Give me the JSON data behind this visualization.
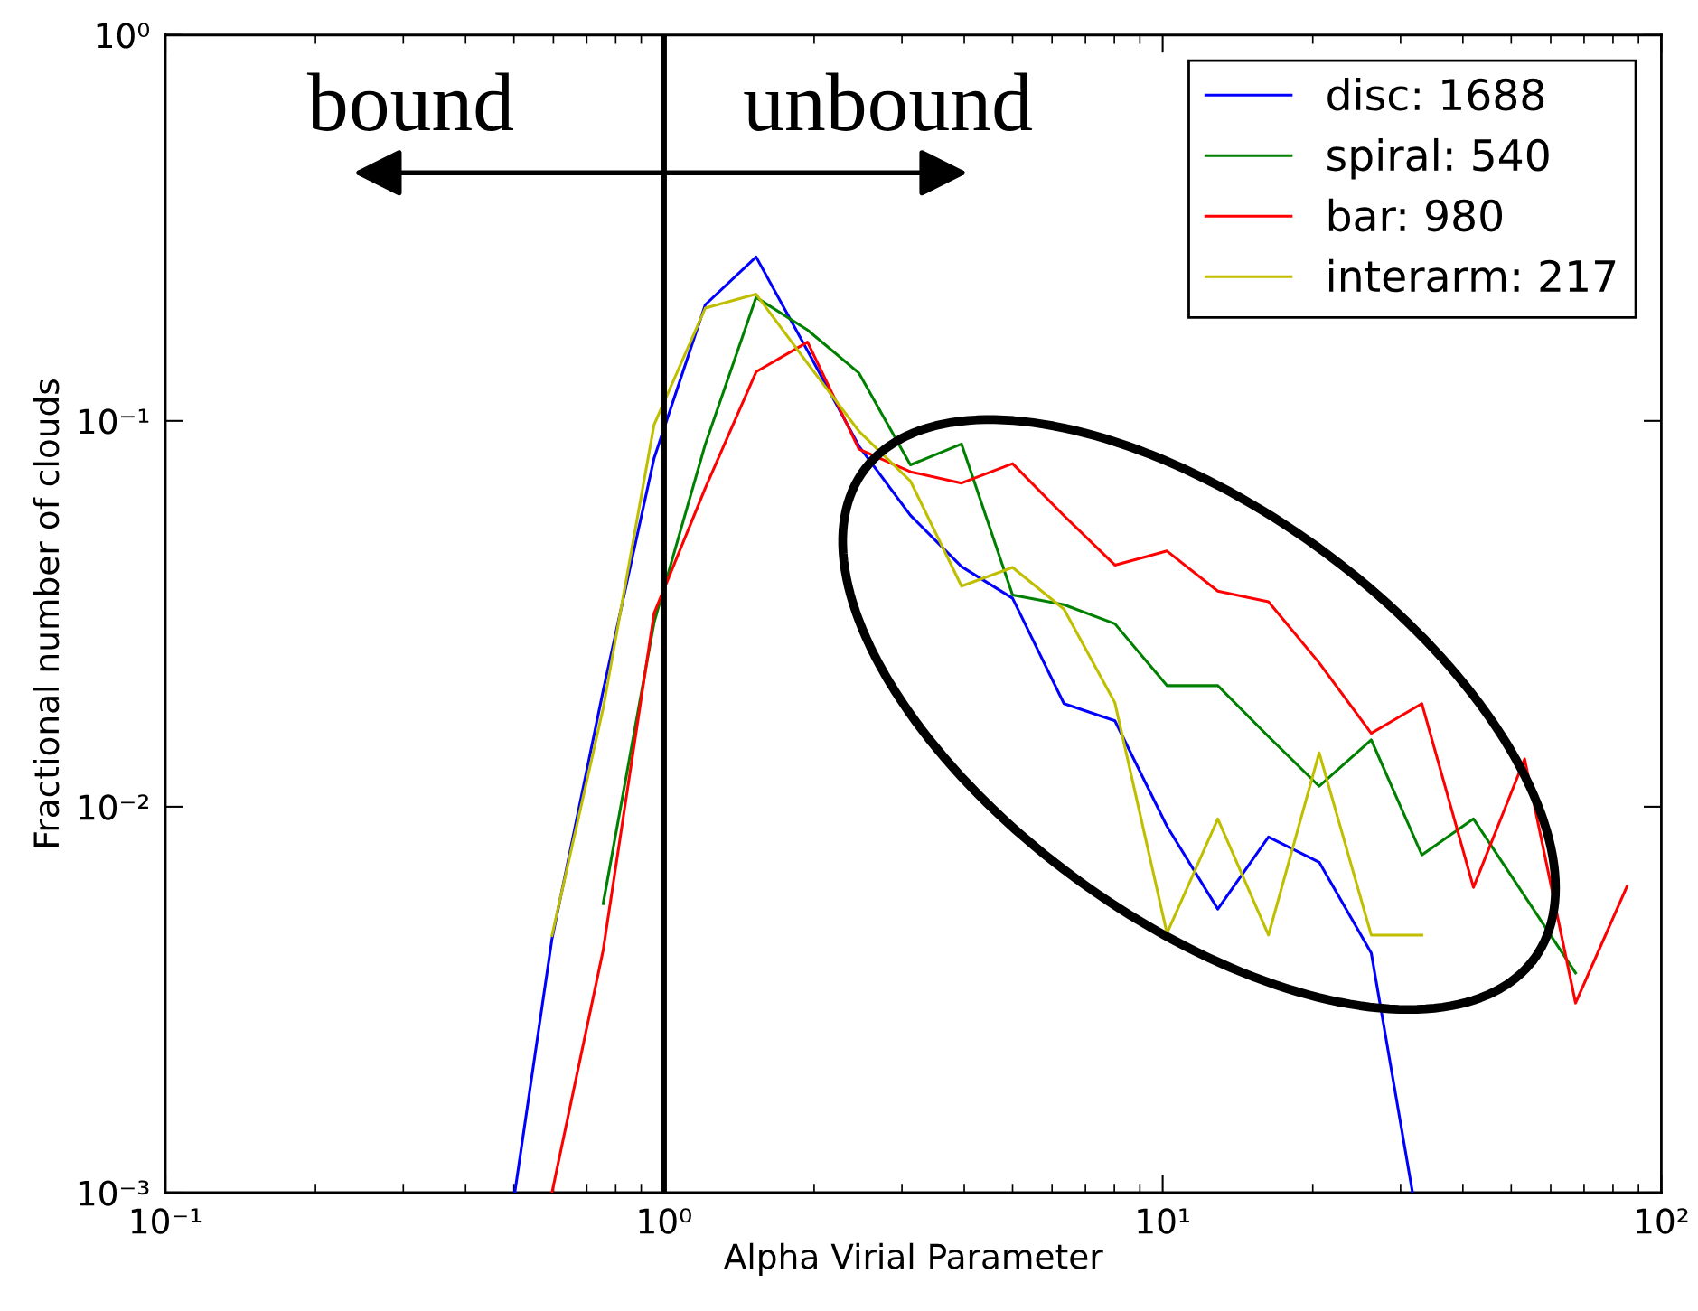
{
  "chart_data": {
    "type": "line",
    "xlabel": "Alpha Virial Parameter",
    "ylabel": "Fractional number of clouds",
    "log": "xy",
    "xlim": [
      0.1,
      100
    ],
    "ylim": [
      0.001,
      1
    ],
    "xticks": [
      {
        "value": 0.1,
        "label": "10⁻¹"
      },
      {
        "value": 1,
        "label": "10⁰"
      },
      {
        "value": 10,
        "label": "10¹"
      },
      {
        "value": 100,
        "label": "10²"
      }
    ],
    "yticks": [
      {
        "value": 0.001,
        "label": "10⁻³"
      },
      {
        "value": 0.01,
        "label": "10⁻²"
      },
      {
        "value": 0.1,
        "label": "10⁻¹"
      },
      {
        "value": 1,
        "label": "10⁰"
      }
    ],
    "grid": false,
    "legend": "top right",
    "marker": "none",
    "line_style": "solid",
    "series": [
      {
        "name": "disc: 1688",
        "color": "#0000ff",
        "x": [
          0.502,
          0.596,
          0.755,
          0.955,
          1.21,
          1.53,
          1.94,
          2.46,
          3.12,
          3.95,
          5.0,
          6.34,
          8.02,
          10.2,
          12.9,
          16.3,
          20.6,
          26.2,
          31.7
        ],
        "values": [
          0.001,
          0.00454,
          0.02,
          0.08,
          0.2,
          0.266,
          0.152,
          0.086,
          0.0569,
          0.0419,
          0.0347,
          0.0185,
          0.0167,
          0.0089,
          0.00543,
          0.00835,
          0.00718,
          0.00418,
          0.001
        ]
      },
      {
        "name": "spiral: 540",
        "color": "#008000",
        "x": [
          0.755,
          0.955,
          1.21,
          1.53,
          1.94,
          2.46,
          3.12,
          3.95,
          5.0,
          6.34,
          8.02,
          10.2,
          12.9,
          16.3,
          20.6,
          26.2,
          33.1,
          42.0,
          53.2,
          67.3
        ],
        "values": [
          0.00561,
          0.03,
          0.087,
          0.209,
          0.172,
          0.133,
          0.0769,
          0.0871,
          0.0354,
          0.0334,
          0.0298,
          0.0206,
          0.0206,
          0.0152,
          0.0113,
          0.0149,
          0.0075,
          0.0093,
          0.00587,
          0.00371
        ]
      },
      {
        "name": "bar: 980",
        "color": "#ff0000",
        "x": [
          0.596,
          0.755,
          0.955,
          1.21,
          1.53,
          1.94,
          2.46,
          3.12,
          3.95,
          5.0,
          6.34,
          8.02,
          10.2,
          12.9,
          16.3,
          20.6,
          26.2,
          33.1,
          42.0,
          53.2,
          67.3,
          85.3
        ],
        "values": [
          0.001,
          0.00425,
          0.0317,
          0.067,
          0.134,
          0.16,
          0.0845,
          0.0738,
          0.069,
          0.0775,
          0.0568,
          0.0423,
          0.046,
          0.0362,
          0.034,
          0.0236,
          0.0155,
          0.0185,
          0.00618,
          0.0133,
          0.0031,
          0.00621
        ]
      },
      {
        "name": "interarm: 217",
        "color": "#bfbf00",
        "x": [
          0.596,
          0.755,
          0.955,
          1.21,
          1.53,
          1.94,
          2.46,
          3.12,
          3.95,
          5.0,
          6.34,
          8.02,
          10.2,
          12.9,
          16.3,
          20.6,
          26.2,
          33.1
        ],
        "values": [
          0.00464,
          0.018,
          0.0977,
          0.196,
          0.213,
          0.141,
          0.094,
          0.0698,
          0.0373,
          0.0417,
          0.0325,
          0.0186,
          0.0047,
          0.0093,
          0.00465,
          0.0138,
          0.00465,
          0.00465
        ]
      }
    ],
    "ref_lines": [
      {
        "axis": "x",
        "value": 1,
        "color": "#000000",
        "line_style": "solid"
      }
    ],
    "annotations": [
      "bound",
      "unbound"
    ]
  }
}
